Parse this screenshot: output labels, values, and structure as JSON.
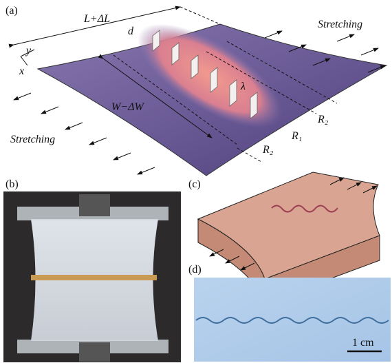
{
  "panels": [
    {
      "label": "(a)",
      "annotations": [
        "L+ΔL",
        "d",
        "y",
        "x",
        "Stretching",
        "W−ΔW",
        "λ",
        "R₂",
        "R₁",
        "R₂",
        "Stretching"
      ]
    },
    {
      "label": "(b)"
    },
    {
      "label": "(c)"
    },
    {
      "label": "(d)",
      "annotations": [
        "1 cm"
      ]
    }
  ]
}
